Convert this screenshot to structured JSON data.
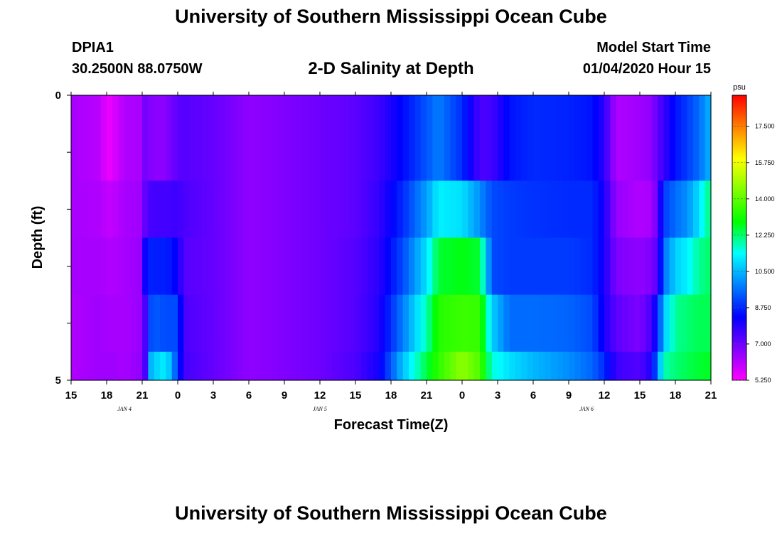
{
  "page": {
    "title_top": "University of Southern Mississippi Ocean Cube",
    "title_bottom": "University of Southern Mississippi Ocean Cube",
    "station_id": "DPIA1",
    "station_coords": "30.2500N 88.0750W",
    "chart_title": "2-D Salinity at Depth",
    "model_start_label": "Model Start Time",
    "model_start_value": "01/04/2020 Hour 15"
  },
  "colors": {
    "colormap": [
      "#ff00ff",
      "#8000ff",
      "#0000ff",
      "#0080ff",
      "#00ffff",
      "#00ff00",
      "#80ff00",
      "#ffff00",
      "#ff8000",
      "#ff0000"
    ]
  },
  "chart_data": {
    "type": "heatmap",
    "title": "2-D Salinity at Depth",
    "xlabel": "Forecast Time(Z)",
    "ylabel": "Depth (ft)",
    "x_hours": [
      0,
      54
    ],
    "x_ticks": [
      {
        "hour": 0,
        "label": "15"
      },
      {
        "hour": 3,
        "label": "18"
      },
      {
        "hour": 6,
        "label": "21"
      },
      {
        "hour": 9,
        "label": "0"
      },
      {
        "hour": 12,
        "label": "3"
      },
      {
        "hour": 15,
        "label": "6"
      },
      {
        "hour": 18,
        "label": "9"
      },
      {
        "hour": 21,
        "label": "12"
      },
      {
        "hour": 24,
        "label": "15"
      },
      {
        "hour": 27,
        "label": "18"
      },
      {
        "hour": 30,
        "label": "21"
      },
      {
        "hour": 33,
        "label": "0"
      },
      {
        "hour": 36,
        "label": "3"
      },
      {
        "hour": 39,
        "label": "6"
      },
      {
        "hour": 42,
        "label": "9"
      },
      {
        "hour": 45,
        "label": "12"
      },
      {
        "hour": 48,
        "label": "15"
      },
      {
        "hour": 51,
        "label": "18"
      },
      {
        "hour": 54,
        "label": "21"
      }
    ],
    "date_labels": [
      {
        "hour": 4.5,
        "label": "JAN 4"
      },
      {
        "hour": 21,
        "label": "JAN 5"
      },
      {
        "hour": 43.5,
        "label": "JAN 6"
      }
    ],
    "y_range": [
      0,
      5
    ],
    "y_tick_values": [
      0,
      1,
      2,
      3,
      4,
      5
    ],
    "y_tick_labels": [
      {
        "value": 0,
        "label": "0"
      },
      {
        "value": 5,
        "label": "5"
      }
    ],
    "colorbar": {
      "unit": "psu",
      "range": [
        5.25,
        19.0
      ],
      "ticks": [
        "5.250",
        "7.000",
        "8.750",
        "10.500",
        "12.250",
        "14.000",
        "15.750",
        "17.500"
      ]
    },
    "depth_rows": 5,
    "time_step_hours": 0.5,
    "profile": [
      [
        0,
        [
          6.3,
          6.3,
          6.3,
          6.2,
          6.2
        ]
      ],
      [
        2.5,
        [
          6.1,
          6.2,
          6.3,
          6.4,
          6.4
        ]
      ],
      [
        3.0,
        [
          5.4,
          6.0,
          6.2,
          6.3,
          6.4
        ]
      ],
      [
        3.5,
        [
          5.6,
          6.0,
          6.2,
          6.3,
          6.4
        ]
      ],
      [
        4.5,
        [
          6.2,
          6.3,
          6.3,
          6.3,
          6.3
        ]
      ],
      [
        6.0,
        [
          6.3,
          6.4,
          6.5,
          6.5,
          6.6
        ]
      ],
      [
        6.3,
        [
          7.0,
          7.3,
          8.5,
          7.6,
          7.6
        ]
      ],
      [
        6.8,
        [
          6.7,
          7.5,
          8.7,
          9.4,
          10.8
        ]
      ],
      [
        7.5,
        [
          6.6,
          7.5,
          8.6,
          9.3,
          10.9
        ]
      ],
      [
        8.0,
        [
          6.7,
          7.5,
          8.7,
          9.2,
          11.3
        ]
      ],
      [
        9.0,
        [
          7.2,
          7.6,
          8.2,
          9.2,
          9.0
        ]
      ],
      [
        9.5,
        [
          7.3,
          7.4,
          7.3,
          7.4,
          7.5
        ]
      ],
      [
        12.0,
        [
          7.1,
          7.1,
          7.1,
          7.1,
          7.1
        ]
      ],
      [
        15.0,
        [
          6.6,
          6.6,
          6.6,
          6.6,
          6.6
        ]
      ],
      [
        17.0,
        [
          6.7,
          6.7,
          6.7,
          6.7,
          6.7
        ]
      ],
      [
        21.0,
        [
          7.0,
          7.0,
          7.0,
          7.0,
          7.0
        ]
      ],
      [
        24.0,
        [
          7.2,
          7.2,
          7.3,
          7.3,
          7.4
        ]
      ],
      [
        26.0,
        [
          7.6,
          7.7,
          7.8,
          7.9,
          8.1
        ]
      ],
      [
        28.0,
        [
          8.4,
          8.8,
          9.2,
          9.8,
          10.6
        ]
      ],
      [
        30.0,
        [
          9.3,
          10.2,
          11.0,
          11.8,
          12.5
        ]
      ],
      [
        31.0,
        [
          9.8,
          11.2,
          12.6,
          13.3,
          13.4
        ]
      ],
      [
        33.0,
        [
          8.8,
          11.0,
          12.8,
          13.6,
          14.6
        ]
      ],
      [
        34.5,
        [
          7.4,
          10.0,
          12.6,
          13.5,
          13.8
        ]
      ],
      [
        35.5,
        [
          7.5,
          9.2,
          9.2,
          10.8,
          11.6
        ]
      ],
      [
        37.0,
        [
          8.5,
          9.0,
          9.0,
          9.6,
          11.0
        ]
      ],
      [
        39.0,
        [
          8.8,
          8.9,
          9.0,
          9.6,
          10.5
        ]
      ],
      [
        42.0,
        [
          8.7,
          8.8,
          9.0,
          9.5,
          10.0
        ]
      ],
      [
        44.0,
        [
          8.5,
          8.8,
          8.8,
          9.2,
          9.5
        ]
      ],
      [
        45.0,
        [
          7.8,
          8.0,
          8.0,
          8.0,
          8.8
        ]
      ],
      [
        46.0,
        [
          6.2,
          6.5,
          6.8,
          7.2,
          7.6
        ]
      ],
      [
        48.0,
        [
          6.4,
          6.2,
          6.6,
          6.8,
          7.3
        ]
      ],
      [
        49.0,
        [
          6.6,
          6.3,
          6.8,
          7.5,
          8.0
        ]
      ],
      [
        49.5,
        [
          7.2,
          7.1,
          7.3,
          8.6,
          9.8
        ]
      ],
      [
        50.0,
        [
          7.6,
          9.0,
          9.6,
          10.6,
          11.8
        ]
      ],
      [
        51.0,
        [
          8.5,
          9.6,
          10.8,
          12.0,
          12.2
        ]
      ],
      [
        52.0,
        [
          9.0,
          10.0,
          11.2,
          12.2,
          12.4
        ]
      ],
      [
        53.0,
        [
          9.6,
          11.0,
          12.0,
          12.4,
          12.6
        ]
      ],
      [
        54.0,
        [
          10.5,
          12.3,
          12.3,
          12.4,
          12.7
        ]
      ]
    ]
  }
}
